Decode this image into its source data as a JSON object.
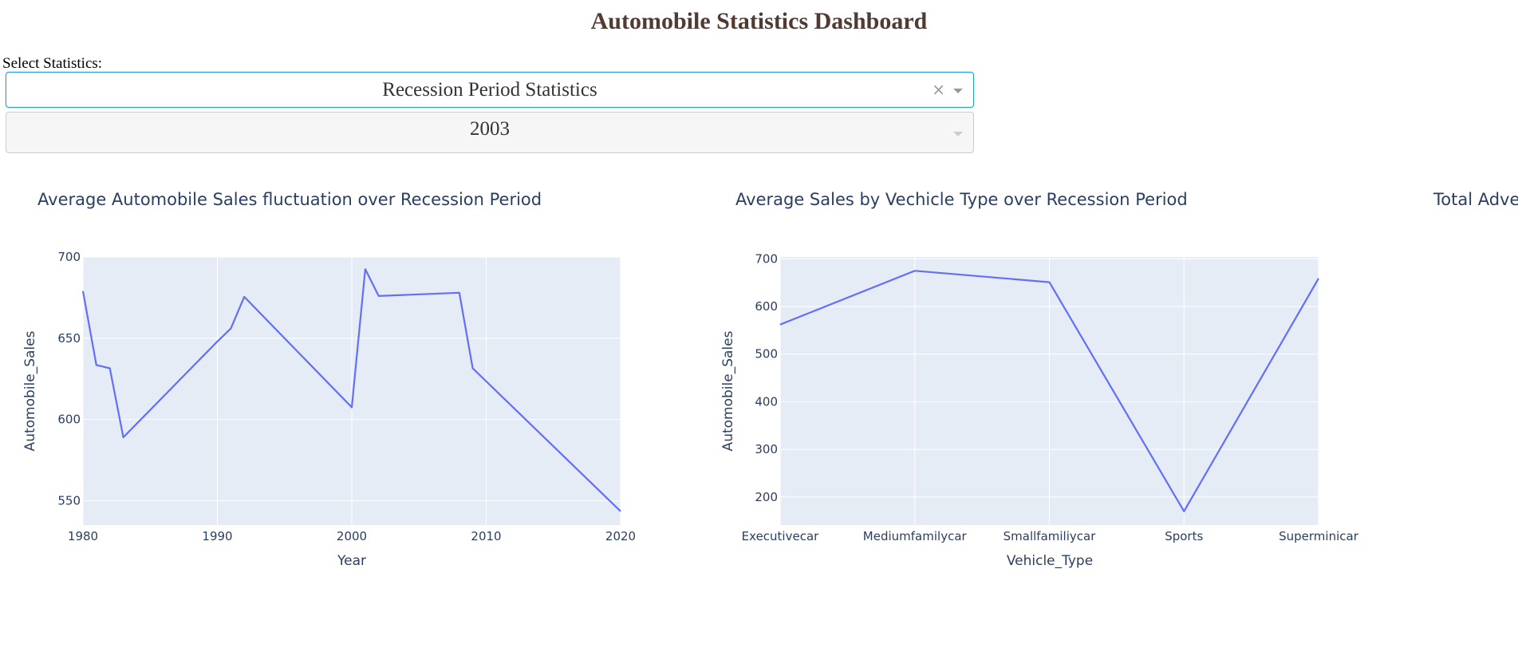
{
  "header": {
    "title": "Automobile Statistics Dashboard"
  },
  "controls": {
    "select_label": "Select Statistics:",
    "statistics_dropdown": {
      "value": "Recession Period Statistics",
      "clear_icon": "×"
    },
    "year_dropdown": {
      "value": "2003"
    }
  },
  "colors": {
    "plot_bg": "#e5ecf6",
    "line": "#636efa",
    "text": "#2a3f5f",
    "title": "#503a32"
  },
  "chart_data": [
    {
      "type": "line",
      "title": "Average Automobile Sales fluctuation over Recession Period",
      "xlabel": "Year",
      "ylabel": "Automobile_Sales",
      "x": [
        1980,
        1981,
        1982,
        1983,
        1990,
        1991,
        1992,
        2000,
        2001,
        2002,
        2008,
        2009,
        2020
      ],
      "y": [
        679,
        633.5,
        631.5,
        589,
        648,
        656,
        675.5,
        607.5,
        692.5,
        676,
        678,
        631.5,
        543.5
      ],
      "xlim": [
        1980,
        2020
      ],
      "ylim": [
        535,
        700
      ],
      "xticks": [
        1980,
        1990,
        2000,
        2010,
        2020
      ],
      "yticks": [
        550,
        600,
        650,
        700
      ],
      "grid": true
    },
    {
      "type": "line",
      "title": "Average Sales by Vechicle Type over Recession Period",
      "xlabel": "Vehicle_Type",
      "ylabel": "Automobile_Sales",
      "categories": [
        "Executivecar",
        "Mediumfamilycar",
        "Smallfamiliycar",
        "Sports",
        "Superminicar"
      ],
      "values": [
        562,
        675,
        651,
        170,
        659
      ],
      "ylim": [
        141,
        704
      ],
      "yticks": [
        200,
        300,
        400,
        500,
        600,
        700
      ],
      "grid": true
    },
    {
      "type": "pie",
      "title": "Total Adve"
    }
  ]
}
